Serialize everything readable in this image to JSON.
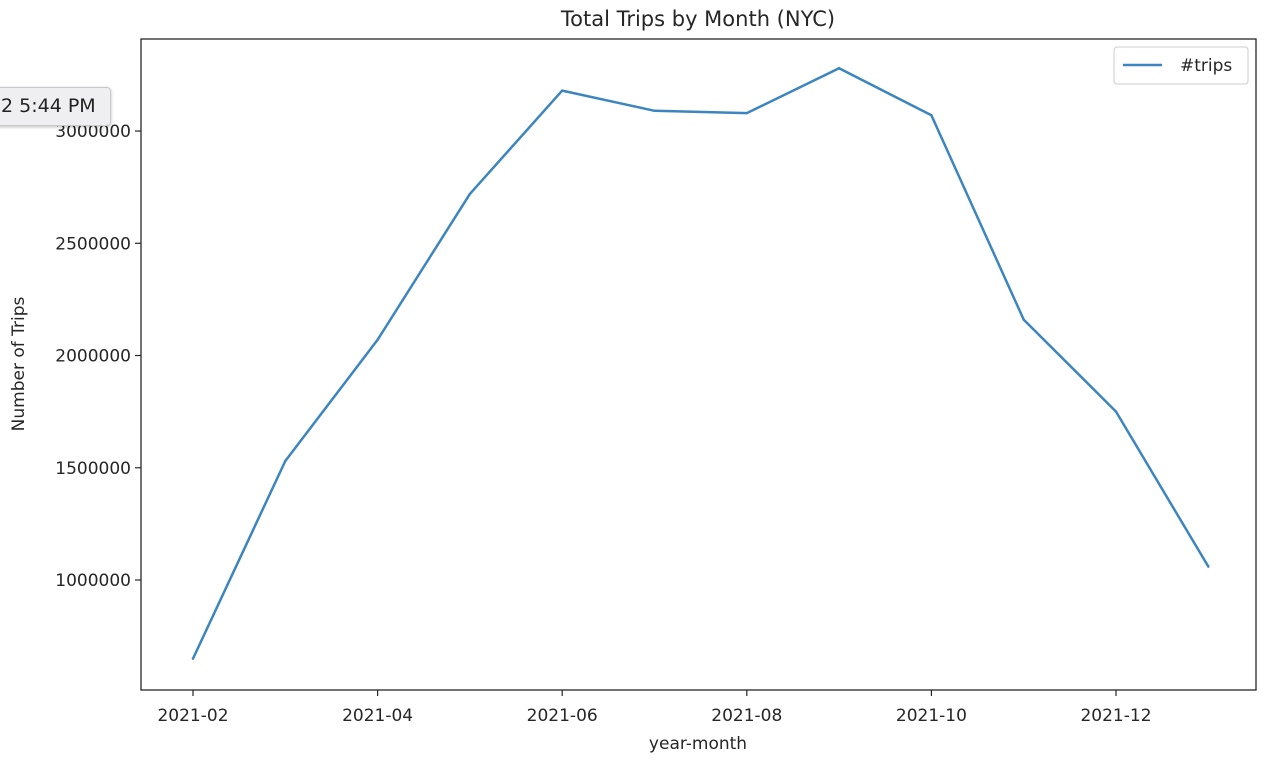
{
  "tooltip": {
    "text": "2 5:44 PM"
  },
  "colors": {
    "line": "#3d85bf",
    "axis": "#262626"
  },
  "chart_data": {
    "type": "line",
    "title": "Total Trips by Month (NYC)",
    "xlabel": "year-month",
    "ylabel": "Number of Trips",
    "x": [
      "2021-02",
      "2021-03",
      "2021-04",
      "2021-05",
      "2021-06",
      "2021-07",
      "2021-08",
      "2021-09",
      "2021-10",
      "2021-11",
      "2021-12",
      "2022-01"
    ],
    "series": [
      {
        "name": "#trips",
        "values": [
          650000,
          1530000,
          2070000,
          2720000,
          3180000,
          3090000,
          3080000,
          3280000,
          3070000,
          2160000,
          1750000,
          1060000
        ]
      }
    ],
    "xticks": [
      "2021-02",
      "2021-04",
      "2021-06",
      "2021-08",
      "2021-10",
      "2021-12"
    ],
    "yticks": [
      1000000,
      1500000,
      2000000,
      2500000,
      3000000
    ],
    "ytick_labels": [
      "1000000",
      "1500000",
      "2000000",
      "2500000",
      "3000000"
    ],
    "ylim": [
      510000,
      3410000
    ],
    "grid": false,
    "legend": "top-right"
  }
}
